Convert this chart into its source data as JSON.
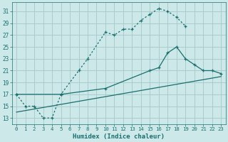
{
  "xlabel": "Humidex (Indice chaleur)",
  "background_color": "#cce8e8",
  "grid_color": "#aacccc",
  "line_color": "#1a6e6e",
  "xlim": [
    -0.5,
    23.5
  ],
  "ylim": [
    12,
    32.5
  ],
  "xticks": [
    0,
    1,
    2,
    3,
    4,
    5,
    6,
    7,
    8,
    9,
    10,
    11,
    12,
    13,
    14,
    15,
    16,
    17,
    18,
    19,
    20,
    21,
    22,
    23
  ],
  "yticks": [
    13,
    15,
    17,
    19,
    21,
    23,
    25,
    27,
    29,
    31
  ],
  "line1_x": [
    0,
    1,
    2,
    3,
    4,
    5,
    7,
    8,
    10,
    11,
    12,
    13,
    14,
    15,
    16,
    17,
    18,
    19
  ],
  "line1_y": [
    17,
    15,
    15,
    13,
    13,
    17,
    21,
    23,
    27.5,
    27,
    28,
    28,
    29.5,
    30.5,
    31.5,
    31,
    30,
    28.5
  ],
  "line2_x": [
    0,
    23
  ],
  "line2_y": [
    14,
    20
  ],
  "line3_x": [
    0,
    5,
    10,
    15,
    16,
    17,
    18,
    19,
    20,
    21,
    22,
    23
  ],
  "line3_y": [
    17,
    17,
    18,
    21,
    21.5,
    24,
    25,
    23,
    22,
    21,
    21,
    20.5
  ]
}
